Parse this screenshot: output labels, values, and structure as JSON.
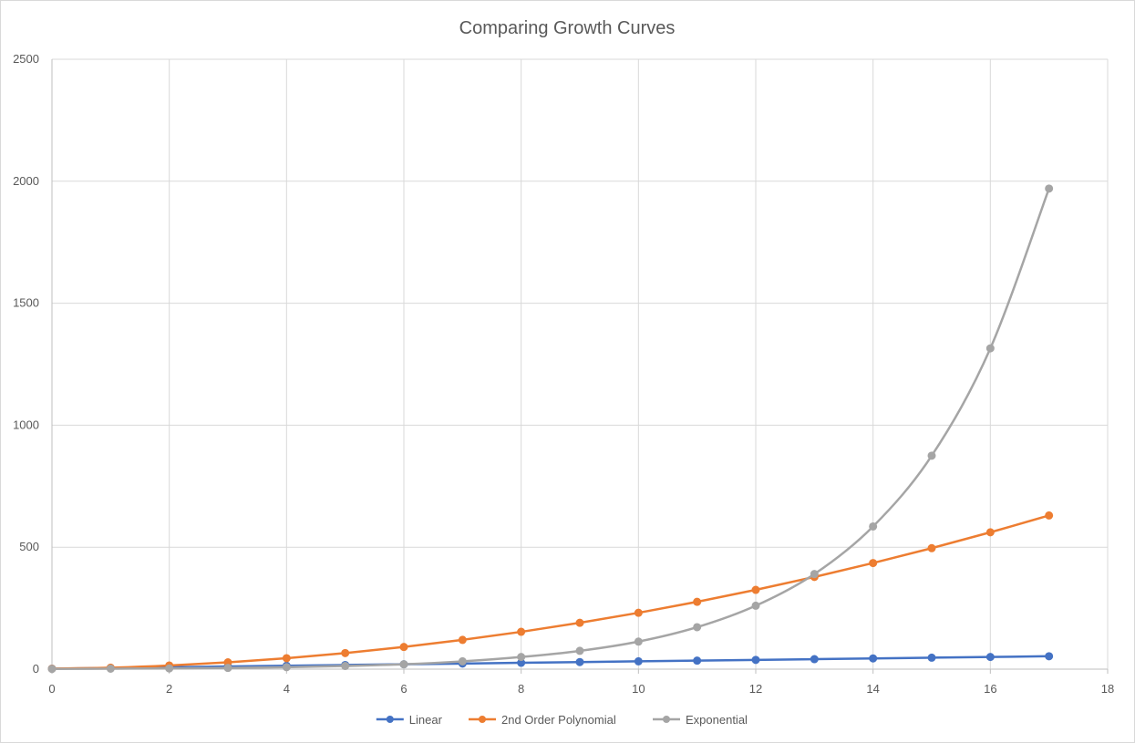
{
  "chart_data": {
    "type": "scatter",
    "title": "Comparing Growth Curves",
    "xlabel": "",
    "ylabel": "",
    "xlim": [
      0,
      18
    ],
    "ylim": [
      0,
      2500
    ],
    "x_ticks": [
      0,
      2,
      4,
      6,
      8,
      10,
      12,
      14,
      16,
      18
    ],
    "y_ticks": [
      0,
      500,
      1000,
      1500,
      2000,
      2500
    ],
    "grid": true,
    "legend_position": "bottom",
    "x": [
      0,
      1,
      2,
      3,
      4,
      5,
      6,
      7,
      8,
      9,
      10,
      11,
      12,
      13,
      14,
      15,
      16,
      17
    ],
    "series": [
      {
        "name": "Linear",
        "color": "#4472c4",
        "values": [
          2,
          5,
          8,
          11,
          14,
          17,
          20,
          23,
          26,
          29,
          32,
          35,
          38,
          41,
          44,
          47,
          50,
          53
        ]
      },
      {
        "name": "2nd Order Polynomial",
        "color": "#ed7d31",
        "values": [
          2,
          6,
          15,
          28,
          45,
          66,
          91,
          120,
          153,
          190,
          231,
          276,
          325,
          378,
          435,
          496,
          561,
          630
        ]
      },
      {
        "name": "Exponential",
        "color": "#a5a5a5",
        "values": [
          1,
          2,
          3,
          5,
          8,
          13,
          20,
          32,
          50,
          75,
          113,
          172,
          260,
          390,
          585,
          875,
          1315,
          1970
        ]
      }
    ]
  }
}
